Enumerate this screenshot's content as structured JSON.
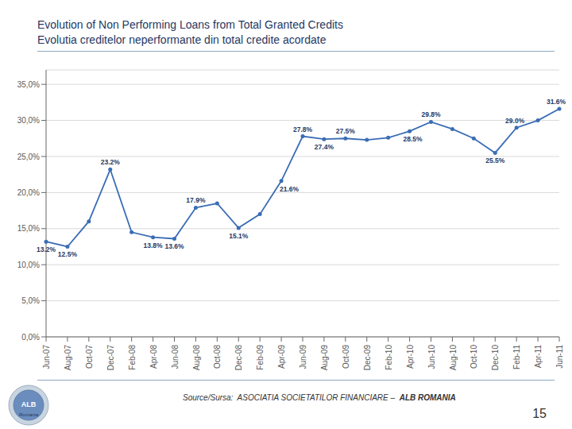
{
  "chart_data": {
    "type": "line",
    "title": "Evolution of Non Performing Loans from Total Granted Credits",
    "subtitle": "Evolutia creditelor neperformante din total credite acordate",
    "categories": [
      "Jun-07",
      "Aug-07",
      "Oct-07",
      "Dec-07",
      "Feb-08",
      "Apr-08",
      "Jun-08",
      "Aug-08",
      "Oct-08",
      "Dec-08",
      "Feb-09",
      "Apr-09",
      "Jun-09",
      "Aug-09",
      "Oct-09",
      "Dec-09",
      "Feb-10",
      "Apr-10",
      "Jun-10",
      "Aug-10",
      "Oct-10",
      "Dec-10",
      "Feb-11",
      "Apr-11",
      "Jun-11"
    ],
    "values": [
      13.2,
      12.5,
      16.0,
      23.2,
      14.5,
      13.8,
      13.6,
      17.9,
      18.5,
      15.1,
      17.0,
      21.6,
      27.8,
      27.4,
      27.5,
      27.3,
      27.6,
      28.5,
      29.8,
      28.8,
      27.5,
      25.5,
      29.0,
      30.0,
      31.6
    ],
    "value_labels": [
      "13.2%",
      "12.5%",
      null,
      "23.2%",
      null,
      "13.8%",
      "13.6%",
      "17.9%",
      null,
      "15.1%",
      null,
      "21.6%",
      "27.8%",
      "27.4%",
      "27.5%",
      null,
      null,
      "28.5%",
      "29.8%",
      null,
      null,
      "25.5%",
      "29.0%",
      null,
      "31.6%"
    ],
    "color": "#3A6DB5",
    "marker": "circle",
    "ylim": [
      0,
      37
    ],
    "yticks": [
      {
        "value": 0,
        "label": "0,0%"
      },
      {
        "value": 5,
        "label": "5,0%"
      },
      {
        "value": 10,
        "label": "10,0%"
      },
      {
        "value": 15,
        "label": "15,0%"
      },
      {
        "value": 20,
        "label": "20,0%"
      },
      {
        "value": 25,
        "label": "25,0%"
      },
      {
        "value": 30,
        "label": "30,0%"
      },
      {
        "value": 35,
        "label": "35,0%"
      }
    ],
    "grid": true,
    "annotations": [
      "Source/Sursa:  ASOCIATIA SOCIETATILOR FINANCIARE –  ",
      "ALB ROMANIA",
      "15",
      "ALB",
      "Romania"
    ]
  }
}
